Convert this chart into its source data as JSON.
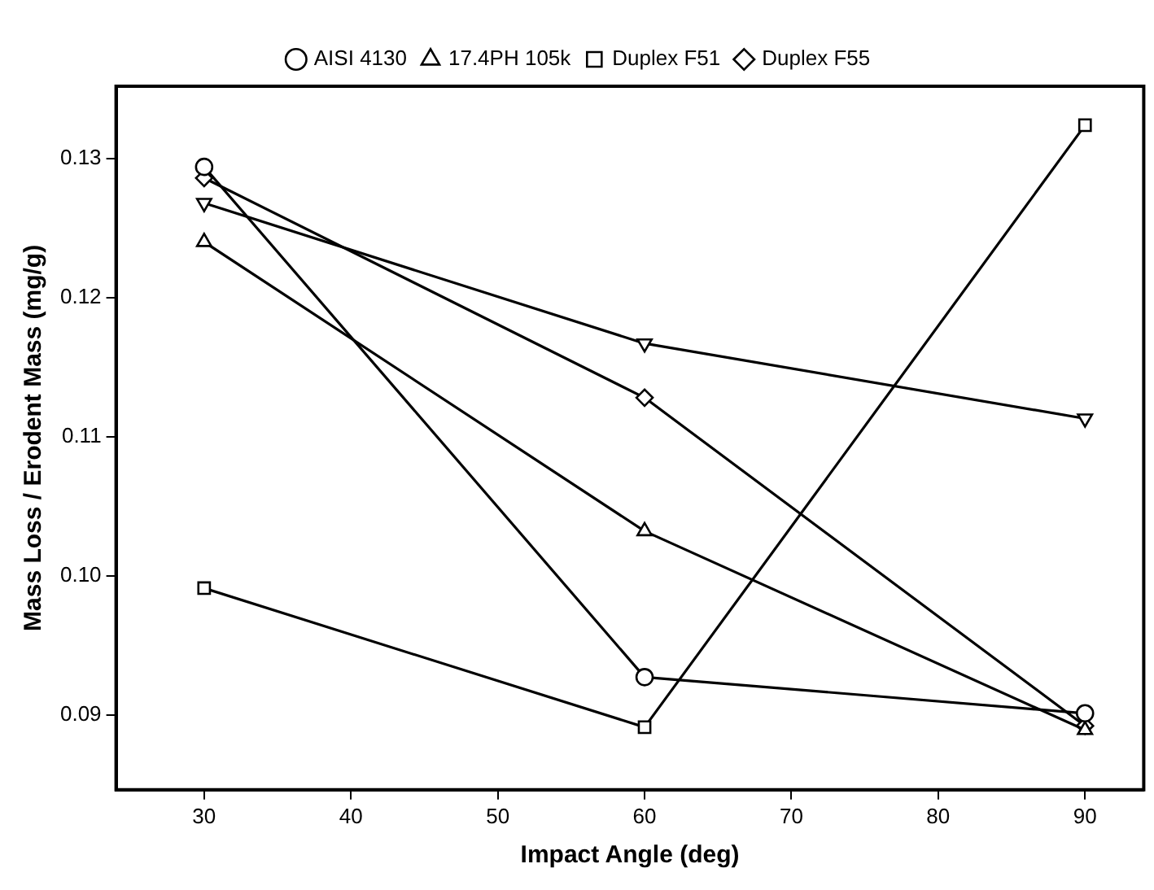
{
  "chart_data": {
    "type": "line",
    "xlabel": "Impact Angle (deg)",
    "ylabel": "Mass Loss / Erodent Mass (mg/g)",
    "x": [
      30,
      60,
      90
    ],
    "xlim": [
      24,
      94
    ],
    "xticks": [
      30,
      40,
      50,
      60,
      70,
      80,
      90
    ],
    "ylim": [
      0.0846,
      0.1352
    ],
    "yticks": [
      0.09,
      {
        "value": 0.1,
        "label": "0.10"
      },
      0.11,
      0.12,
      0.13
    ],
    "grid": false,
    "legend": "top",
    "line_style": "solid",
    "series": [
      {
        "name": "AISI 4130",
        "color": "#000000",
        "marker": "circle",
        "values": [
          0.1294,
          0.0927,
          0.0901
        ]
      },
      {
        "name": "17.4PH 105k",
        "color": "#000000",
        "marker": "triangle",
        "values": [
          0.124,
          0.1032,
          0.0889
        ]
      },
      {
        "name": "Duplex F51",
        "color": "#000000",
        "marker": "square",
        "values": [
          0.0991,
          0.0891,
          0.1324
        ]
      },
      {
        "name": "Duplex F55",
        "color": "#000000",
        "marker": "diamond",
        "values": [
          0.1286,
          0.1128,
          0.0892
        ]
      },
      {
        "color": "#000000",
        "marker": "triangle_down",
        "values": [
          0.1268,
          0.1167,
          0.1113
        ]
      }
    ]
  }
}
